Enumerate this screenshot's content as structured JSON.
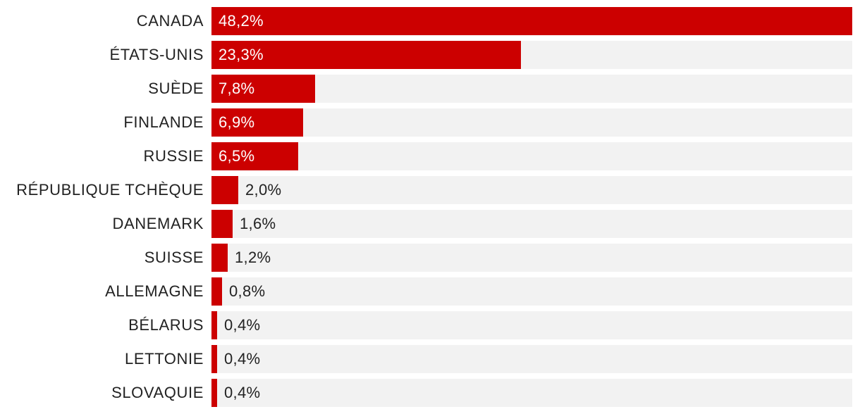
{
  "chart_data": {
    "type": "bar",
    "orientation": "horizontal",
    "categories": [
      "CANADA",
      "ÉTATS-UNIS",
      "SUÈDE",
      "FINLANDE",
      "RUSSIE",
      "RÉPUBLIQUE TCHÈQUE",
      "DANEMARK",
      "SUISSE",
      "ALLEMAGNE",
      "BÉLARUS",
      "LETTONIE",
      "SLOVAQUIE"
    ],
    "values": [
      48.2,
      23.3,
      7.8,
      6.9,
      6.5,
      2.0,
      1.6,
      1.2,
      0.8,
      0.4,
      0.4,
      0.4
    ],
    "value_labels": [
      "48,2%",
      "23,3%",
      "7,8%",
      "6,9%",
      "6,5%",
      "2,0%",
      "1,6%",
      "1,2%",
      "0,8%",
      "0,4%",
      "0,4%",
      "0,4%"
    ],
    "xlim": [
      0,
      48.2
    ],
    "bar_color": "#cc0000",
    "track_color": "#f2f2f2",
    "grid": false,
    "legend": "none"
  }
}
